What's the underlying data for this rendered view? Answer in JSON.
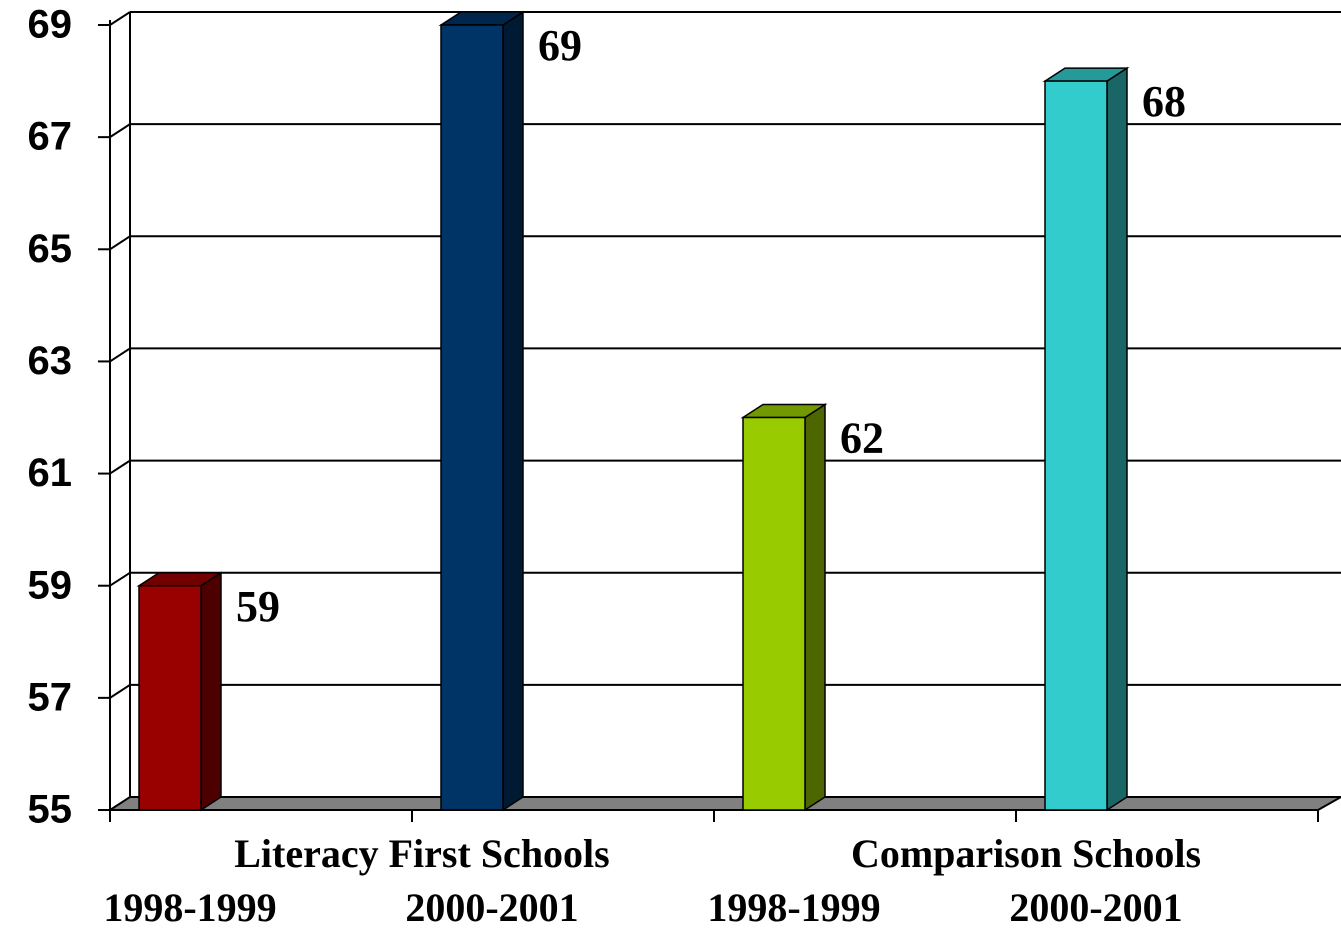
{
  "chart_data": {
    "type": "bar",
    "groups": [
      "Literacy First Schools",
      "Comparison Schools"
    ],
    "categories": [
      "1998-1999",
      "2000-2001",
      "1998-1999",
      "2000-2001"
    ],
    "values": [
      59,
      69,
      62,
      68
    ],
    "colors": [
      "#990000",
      "#003366",
      "#99cc00",
      "#33cccc"
    ],
    "ylim": [
      55,
      69
    ],
    "yticks": [
      55,
      57,
      59,
      61,
      63,
      65,
      67,
      69
    ],
    "grid": true
  }
}
